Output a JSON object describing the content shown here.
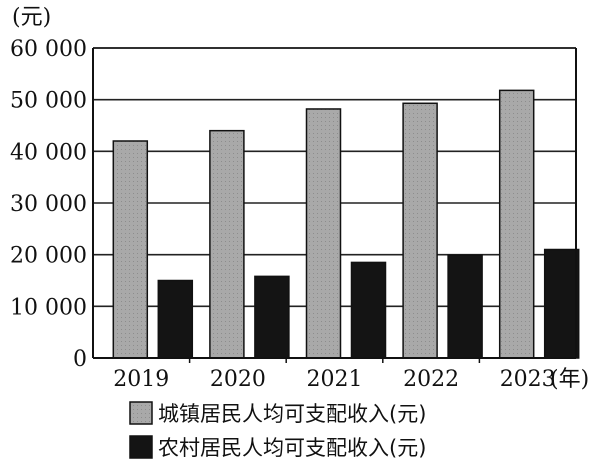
{
  "chart_data": {
    "type": "bar",
    "y_unit": "(元)",
    "x_unit": "(年)",
    "categories": [
      "2019",
      "2020",
      "2021",
      "2022",
      "2023"
    ],
    "series": [
      {
        "name": "城镇居民人均可支配收入(元)",
        "values": [
          42000,
          44000,
          48200,
          49300,
          51800
        ],
        "color": "#a9a9a9"
      },
      {
        "name": "农村居民人均可支配收入(元)",
        "values": [
          15000,
          15800,
          18500,
          19900,
          21000
        ],
        "color": "#141414"
      }
    ],
    "ylim": [
      0,
      60000
    ],
    "yticks": [
      0,
      10000,
      20000,
      30000,
      40000,
      50000,
      60000
    ],
    "ytick_labels": [
      "0",
      "10 000",
      "20 000",
      "30 000",
      "40 000",
      "50 000",
      "60 000"
    ],
    "grid": true,
    "legend_position": "bottom"
  }
}
